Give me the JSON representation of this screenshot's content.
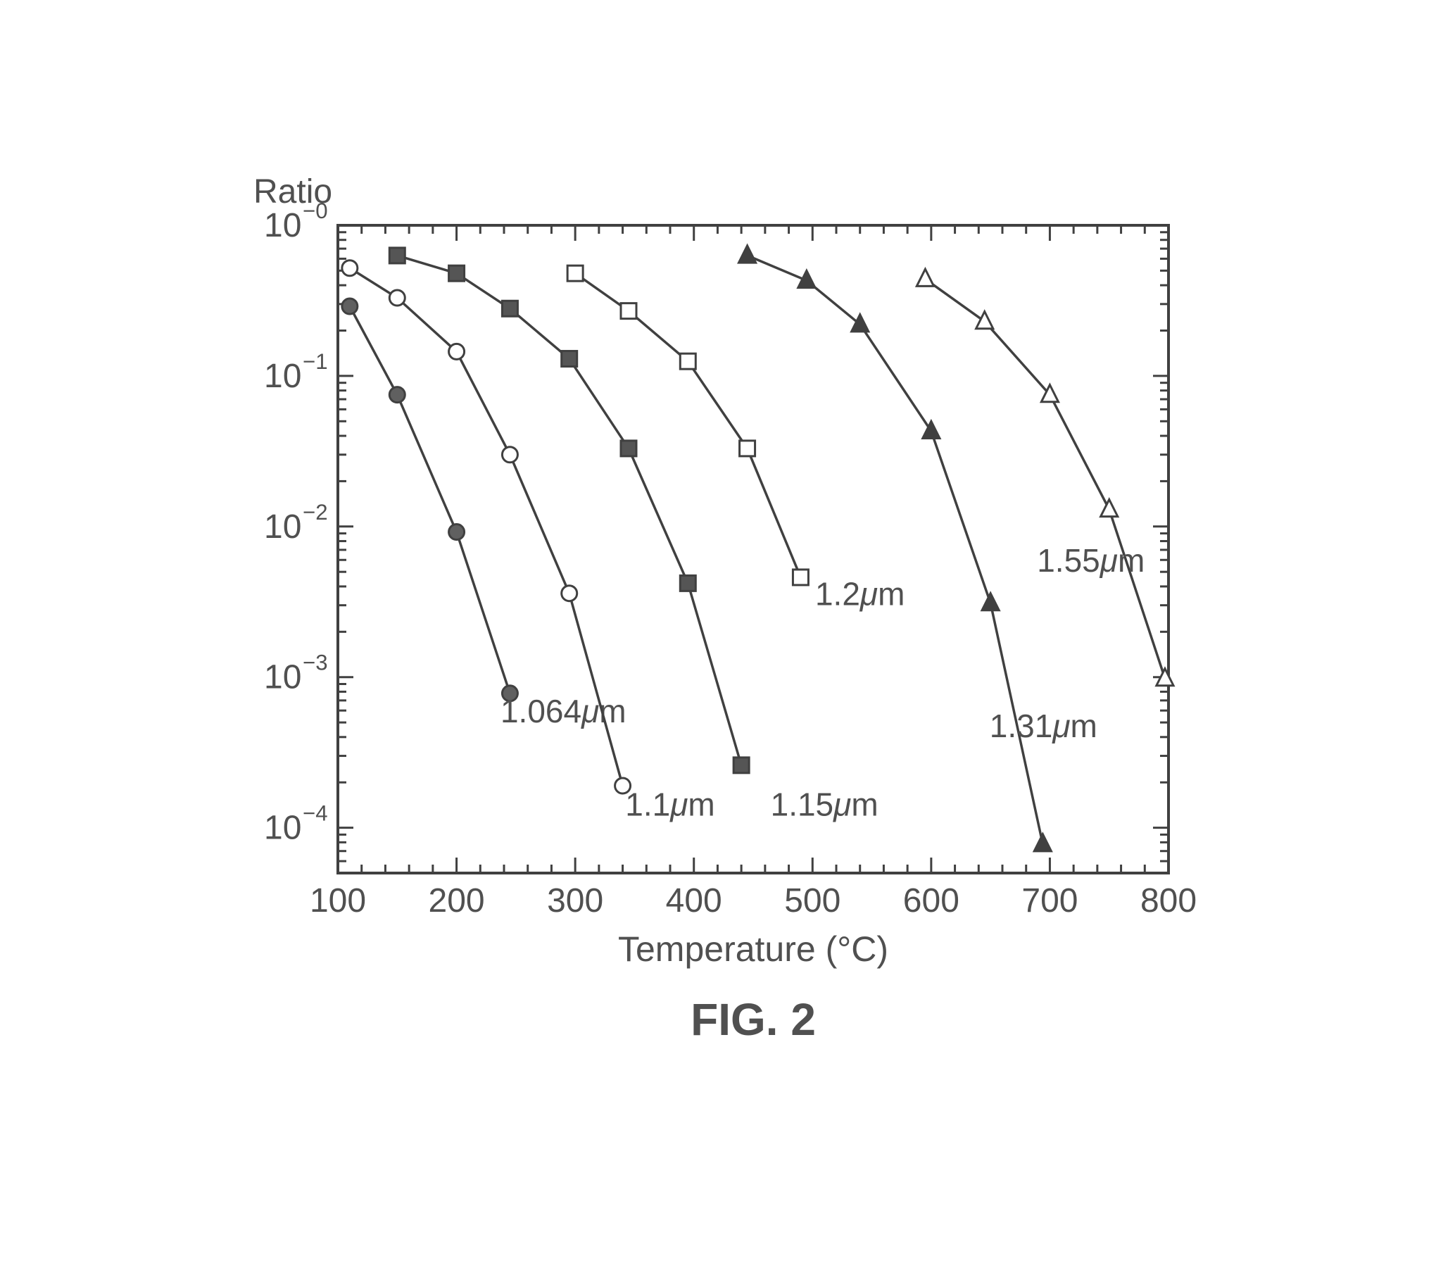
{
  "chart": {
    "type": "line",
    "title_y": "Ratio",
    "xlabel": "Temperature  (°C)",
    "figure_label": "FIG. 2",
    "xlim": [
      100,
      800
    ],
    "ylim": [
      5e-05,
      1
    ],
    "xticks": [
      100,
      200,
      300,
      400,
      500,
      600,
      700,
      800
    ],
    "xticks_labels": [
      "100",
      "200",
      "300",
      "400",
      "500",
      "600",
      "700",
      "800"
    ],
    "yticks_exp": [
      0,
      -1,
      -2,
      -3,
      -4
    ],
    "yticks_labels": [
      "10⁻⁰",
      "10⁻¹",
      "10⁻²",
      "10⁻³",
      "10⁻⁴"
    ],
    "background_color": "#ffffff",
    "axis_color": "#404040",
    "text_color": "#505050",
    "line_color": "#404040",
    "marker_stroke": "#404040",
    "marker_size": 22,
    "line_width": 3.5,
    "axis_width": 4,
    "tick_width": 3,
    "title_fontsize": 48,
    "tick_fontsize": 48,
    "label_fontsize": 50,
    "series_label_fontsize": 46,
    "figure_fontsize": 64,
    "series": [
      {
        "label": "1.064μm",
        "label_x": 290,
        "label_y": 0.0005,
        "marker": "circle",
        "fill": "#606060",
        "data": [
          [
            110,
            0.29
          ],
          [
            150,
            0.075
          ],
          [
            200,
            0.0092
          ],
          [
            245,
            0.00078
          ]
        ]
      },
      {
        "label": "1.1μm",
        "label_x": 380,
        "label_y": 0.00012,
        "marker": "circle",
        "fill": "#ffffff",
        "data": [
          [
            110,
            0.52
          ],
          [
            150,
            0.33
          ],
          [
            200,
            0.145
          ],
          [
            245,
            0.03
          ],
          [
            295,
            0.0036
          ],
          [
            340,
            0.00019
          ]
        ]
      },
      {
        "label": "1.15μm",
        "label_x": 510,
        "label_y": 0.00012,
        "marker": "square",
        "fill": "#555555",
        "data": [
          [
            150,
            0.63
          ],
          [
            200,
            0.48
          ],
          [
            245,
            0.28
          ],
          [
            295,
            0.13
          ],
          [
            345,
            0.033
          ],
          [
            395,
            0.0042
          ],
          [
            440,
            0.00026
          ]
        ]
      },
      {
        "label": "1.2μm",
        "label_x": 540,
        "label_y": 0.003,
        "marker": "square",
        "fill": "#ffffff",
        "data": [
          [
            300,
            0.48
          ],
          [
            345,
            0.27
          ],
          [
            395,
            0.125
          ],
          [
            445,
            0.033
          ],
          [
            490,
            0.0046
          ]
        ]
      },
      {
        "label": "1.31μm",
        "label_x": 740,
        "label_y": 0.0004,
        "marker": "triangle",
        "fill": "#404040",
        "data": [
          [
            445,
            0.63
          ],
          [
            495,
            0.43
          ],
          [
            540,
            0.22
          ],
          [
            600,
            0.043
          ],
          [
            650,
            0.0031
          ],
          [
            694,
            7.8e-05
          ]
        ]
      },
      {
        "label": "1.55μm",
        "label_x": 780,
        "label_y": 0.005,
        "marker": "triangle",
        "fill": "#ffffff",
        "data": [
          [
            595,
            0.44
          ],
          [
            645,
            0.23
          ],
          [
            700,
            0.075
          ],
          [
            750,
            0.013
          ],
          [
            797,
            0.00098
          ]
        ]
      }
    ]
  }
}
